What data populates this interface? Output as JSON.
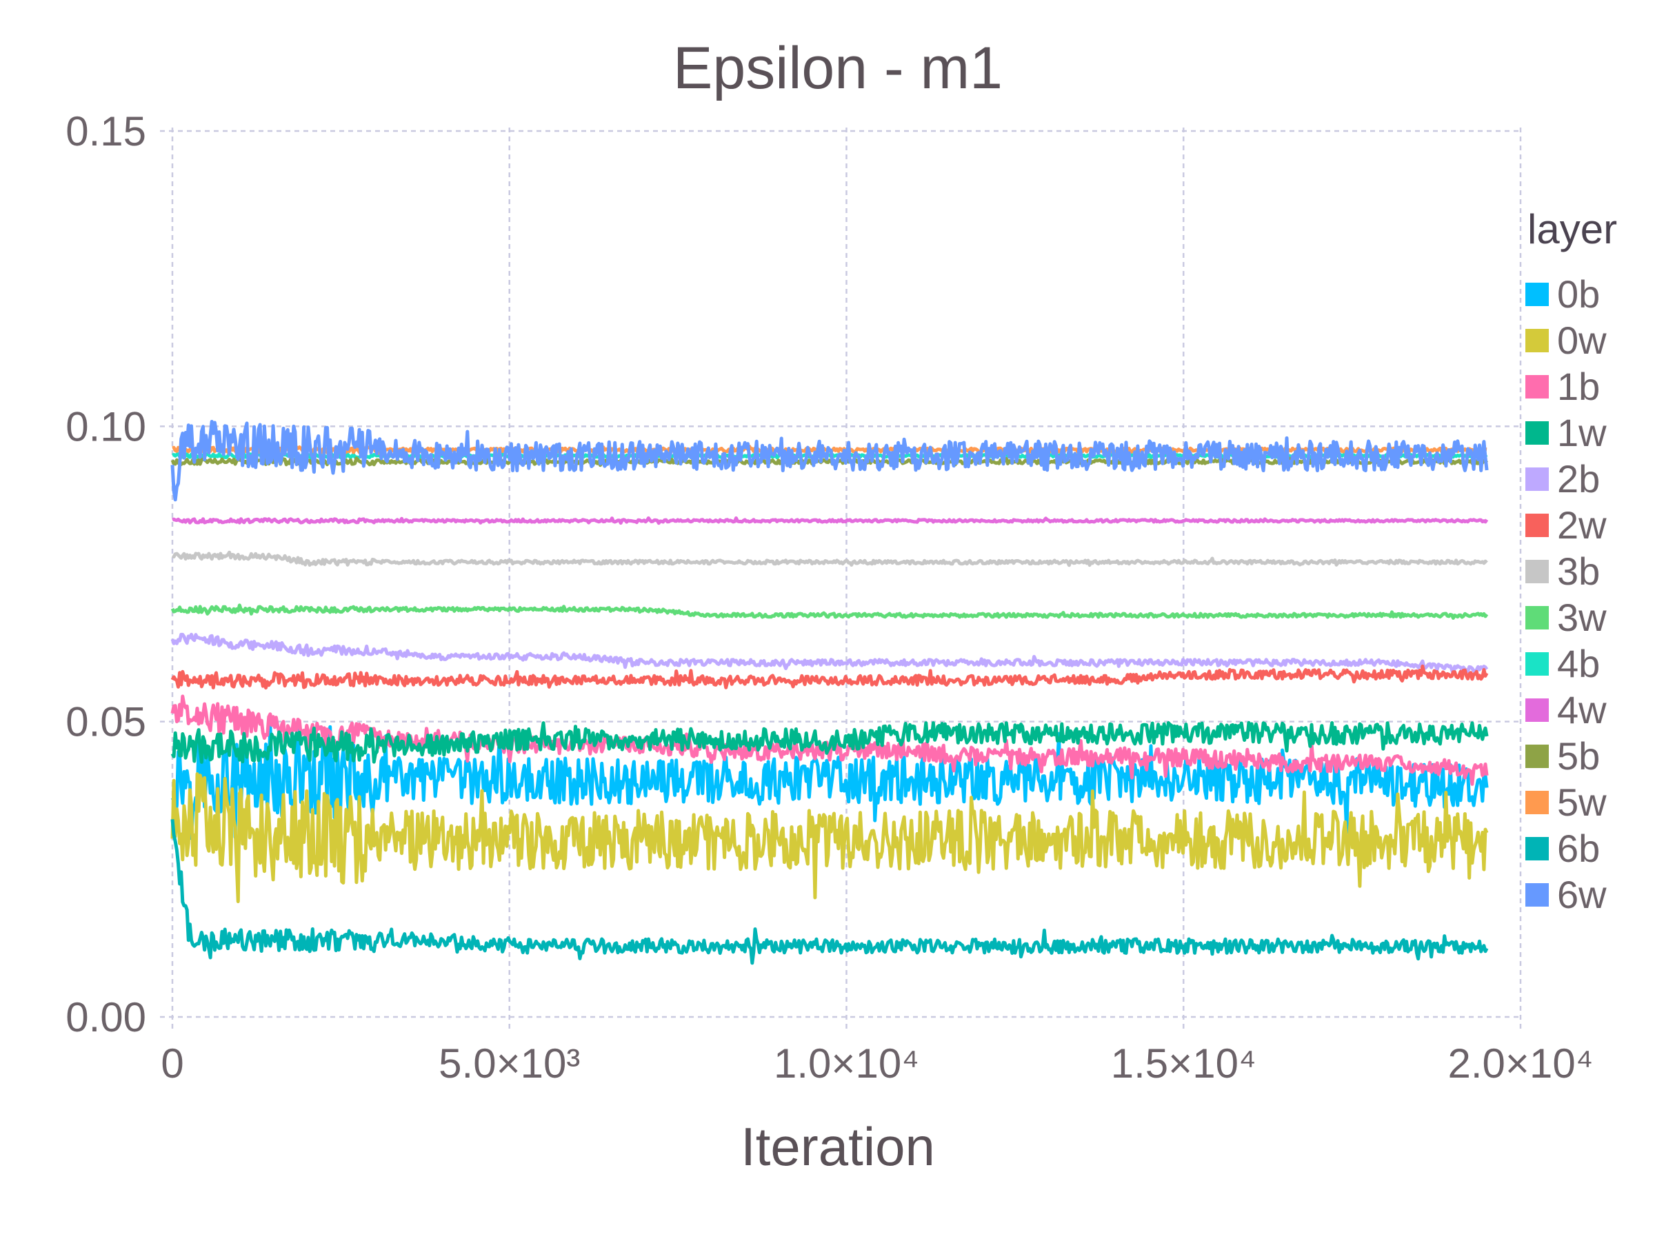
{
  "chart_data": {
    "type": "line",
    "title": "Epsilon - m1",
    "xlabel": "Iteration",
    "ylabel": "",
    "xlim": [
      0,
      20000
    ],
    "ylim": [
      0,
      0.15
    ],
    "x_ticks": [
      {
        "value": 0,
        "label": "0"
      },
      {
        "value": 5000,
        "label": "5.0×10³"
      },
      {
        "value": 10000,
        "label": "1.0×10⁴"
      },
      {
        "value": 15000,
        "label": "1.5×10⁴"
      },
      {
        "value": 20000,
        "label": "2.0×10⁴"
      }
    ],
    "y_ticks": [
      {
        "value": 0,
        "label": "0.00"
      },
      {
        "value": 0.05,
        "label": "0.05"
      },
      {
        "value": 0.1,
        "label": "0.10"
      },
      {
        "value": 0.15,
        "label": "0.15"
      }
    ],
    "grid": true,
    "legend_title": "layer",
    "legend_position": "right",
    "x": [
      0,
      250,
      500,
      1000,
      1500,
      2000,
      3000,
      4000,
      5000,
      6000,
      7000,
      8000,
      9000,
      10000,
      11000,
      12000,
      13000,
      14000,
      15000,
      16000,
      17000,
      18000,
      19000,
      19500
    ],
    "series": [
      {
        "name": "0b",
        "color": "#00BFFF",
        "noise": 0.004,
        "values": [
          0.04,
          0.041,
          0.041,
          0.04,
          0.04,
          0.04,
          0.04,
          0.04,
          0.04,
          0.04,
          0.04,
          0.04,
          0.04,
          0.04,
          0.04,
          0.04,
          0.04,
          0.04,
          0.04,
          0.04,
          0.04,
          0.04,
          0.039,
          0.039
        ]
      },
      {
        "name": "0w",
        "color": "#D4CA3A",
        "noise": 0.005,
        "values": [
          0.033,
          0.034,
          0.033,
          0.032,
          0.031,
          0.031,
          0.03,
          0.03,
          0.03,
          0.03,
          0.03,
          0.03,
          0.03,
          0.03,
          0.03,
          0.03,
          0.03,
          0.03,
          0.03,
          0.03,
          0.03,
          0.03,
          0.03,
          0.029
        ]
      },
      {
        "name": "1b",
        "color": "#FF6DAE",
        "noise": 0.0015,
        "values": [
          0.052,
          0.052,
          0.051,
          0.05,
          0.049,
          0.048,
          0.047,
          0.047,
          0.046,
          0.046,
          0.046,
          0.045,
          0.045,
          0.045,
          0.045,
          0.044,
          0.044,
          0.044,
          0.044,
          0.043,
          0.043,
          0.043,
          0.042,
          0.042
        ]
      },
      {
        "name": "1w",
        "color": "#00B78D",
        "noise": 0.0018,
        "values": [
          0.045,
          0.046,
          0.046,
          0.046,
          0.046,
          0.046,
          0.046,
          0.046,
          0.047,
          0.047,
          0.047,
          0.047,
          0.047,
          0.047,
          0.048,
          0.048,
          0.048,
          0.048,
          0.048,
          0.048,
          0.048,
          0.048,
          0.048,
          0.048
        ]
      },
      {
        "name": "2b",
        "color": "#BEA9FF",
        "noise": 0.0005,
        "values": [
          0.064,
          0.064,
          0.064,
          0.063,
          0.063,
          0.062,
          0.062,
          0.061,
          0.061,
          0.061,
          0.06,
          0.06,
          0.06,
          0.06,
          0.06,
          0.06,
          0.06,
          0.06,
          0.06,
          0.06,
          0.06,
          0.06,
          0.059,
          0.059
        ]
      },
      {
        "name": "2w",
        "color": "#F8615C",
        "noise": 0.0008,
        "values": [
          0.057,
          0.057,
          0.057,
          0.057,
          0.057,
          0.057,
          0.057,
          0.057,
          0.057,
          0.057,
          0.057,
          0.057,
          0.057,
          0.057,
          0.057,
          0.057,
          0.057,
          0.057,
          0.058,
          0.058,
          0.058,
          0.058,
          0.058,
          0.058
        ]
      },
      {
        "name": "3b",
        "color": "#C6C6C6",
        "noise": 0.0003,
        "values": [
          0.078,
          0.078,
          0.078,
          0.078,
          0.078,
          0.077,
          0.077,
          0.077,
          0.077,
          0.077,
          0.077,
          0.077,
          0.077,
          0.077,
          0.077,
          0.077,
          0.077,
          0.077,
          0.077,
          0.077,
          0.077,
          0.077,
          0.077,
          0.077
        ]
      },
      {
        "name": "3w",
        "color": "#5FDC78",
        "noise": 0.0003,
        "values": [
          0.069,
          0.069,
          0.069,
          0.069,
          0.069,
          0.069,
          0.069,
          0.069,
          0.069,
          0.069,
          0.069,
          0.068,
          0.068,
          0.068,
          0.068,
          0.068,
          0.068,
          0.068,
          0.068,
          0.068,
          0.068,
          0.068,
          0.068,
          0.068
        ]
      },
      {
        "name": "4b",
        "color": "#1AE3C6",
        "noise": 0.0002,
        "values": [
          0.095,
          0.095,
          0.095,
          0.095,
          0.095,
          0.095,
          0.095,
          0.095,
          0.095,
          0.095,
          0.095,
          0.095,
          0.095,
          0.095,
          0.095,
          0.095,
          0.095,
          0.095,
          0.095,
          0.095,
          0.095,
          0.095,
          0.095,
          0.095
        ]
      },
      {
        "name": "4w",
        "color": "#E36BDC",
        "noise": 0.0002,
        "values": [
          0.084,
          0.084,
          0.084,
          0.084,
          0.084,
          0.084,
          0.084,
          0.084,
          0.084,
          0.084,
          0.084,
          0.084,
          0.084,
          0.084,
          0.084,
          0.084,
          0.084,
          0.084,
          0.084,
          0.084,
          0.084,
          0.084,
          0.084,
          0.084
        ]
      },
      {
        "name": "5b",
        "color": "#8EA346",
        "noise": 0.0003,
        "values": [
          0.094,
          0.094,
          0.094,
          0.094,
          0.094,
          0.094,
          0.094,
          0.094,
          0.094,
          0.094,
          0.094,
          0.094,
          0.094,
          0.094,
          0.094,
          0.094,
          0.094,
          0.094,
          0.094,
          0.094,
          0.094,
          0.094,
          0.094,
          0.094
        ]
      },
      {
        "name": "5w",
        "color": "#FF9A4F",
        "noise": 0.0003,
        "values": [
          0.096,
          0.096,
          0.096,
          0.096,
          0.096,
          0.096,
          0.096,
          0.096,
          0.096,
          0.096,
          0.096,
          0.096,
          0.096,
          0.096,
          0.096,
          0.096,
          0.096,
          0.096,
          0.096,
          0.096,
          0.096,
          0.096,
          0.096,
          0.096
        ]
      },
      {
        "name": "6b",
        "color": "#00B4B6",
        "noise": 0.0012,
        "values": [
          0.032,
          0.014,
          0.013,
          0.013,
          0.013,
          0.013,
          0.013,
          0.013,
          0.012,
          0.012,
          0.012,
          0.012,
          0.012,
          0.012,
          0.012,
          0.012,
          0.012,
          0.012,
          0.012,
          0.012,
          0.012,
          0.012,
          0.012,
          0.012
        ]
      },
      {
        "name": "6w",
        "color": "#6699FF",
        "noise": 0.0025,
        "values": [
          0.09,
          0.098,
          0.097,
          0.097,
          0.097,
          0.096,
          0.096,
          0.095,
          0.095,
          0.095,
          0.095,
          0.095,
          0.095,
          0.095,
          0.095,
          0.095,
          0.095,
          0.095,
          0.095,
          0.095,
          0.095,
          0.095,
          0.095,
          0.095
        ]
      }
    ]
  }
}
